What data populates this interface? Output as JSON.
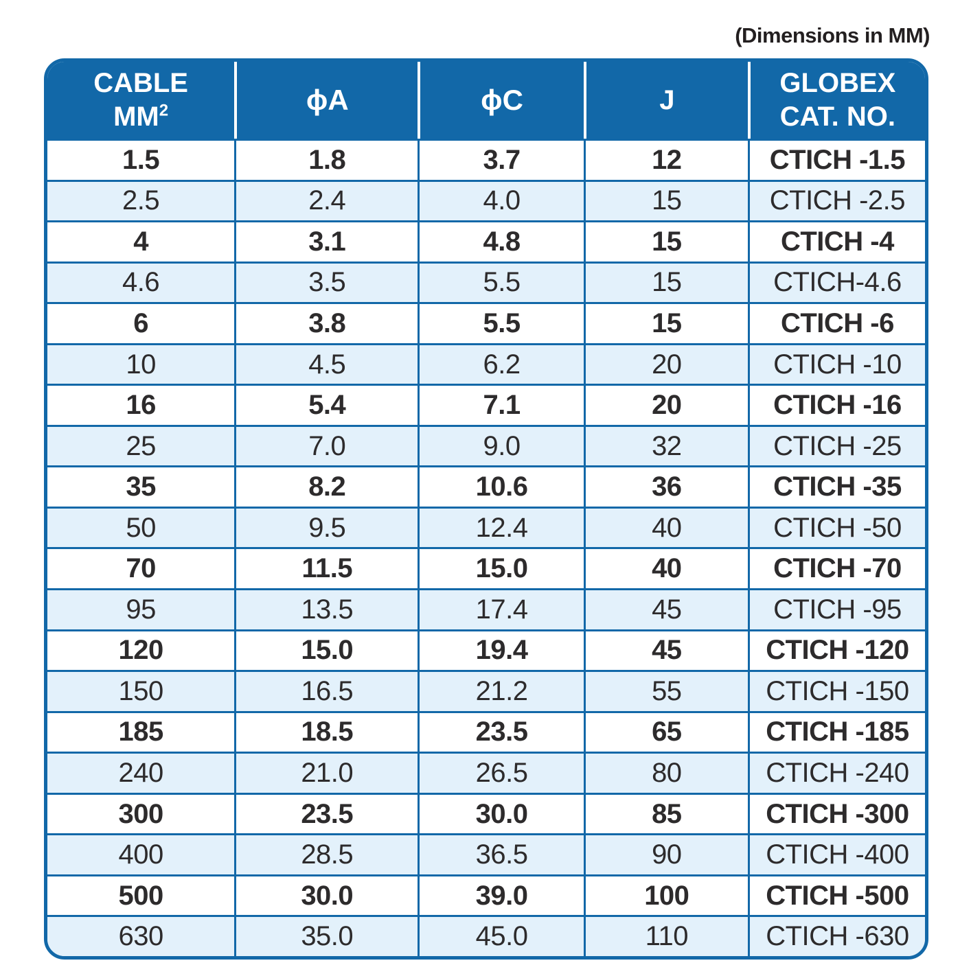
{
  "note": "(Dimensions in MM)",
  "colors": {
    "header_blue": "#1268A8",
    "row_alt_blue": "#E3F1FB",
    "row_white": "#FFFFFF",
    "border_blue": "#1268A8",
    "text_dark": "#2D2B2C",
    "header_text": "#FFFFFF"
  },
  "table": {
    "header": {
      "col1_line1": "CABLE",
      "col1_line2": "MM",
      "col1_sup": "2",
      "col2": "ϕA",
      "col3": "ϕC",
      "col4": "J",
      "col5_line1": "GLOBEX",
      "col5_line2": "CAT. NO."
    },
    "rows": [
      [
        "1.5",
        "1.8",
        "3.7",
        "12",
        "CTICH -1.5"
      ],
      [
        "2.5",
        "2.4",
        "4.0",
        "15",
        "CTICH -2.5"
      ],
      [
        "4",
        "3.1",
        "4.8",
        "15",
        "CTICH -4"
      ],
      [
        "4.6",
        "3.5",
        "5.5",
        "15",
        "CTICH-4.6"
      ],
      [
        "6",
        "3.8",
        "5.5",
        "15",
        "CTICH -6"
      ],
      [
        "10",
        "4.5",
        "6.2",
        "20",
        "CTICH -10"
      ],
      [
        "16",
        "5.4",
        "7.1",
        "20",
        "CTICH -16"
      ],
      [
        "25",
        "7.0",
        "9.0",
        "32",
        "CTICH -25"
      ],
      [
        "35",
        "8.2",
        "10.6",
        "36",
        "CTICH -35"
      ],
      [
        "50",
        "9.5",
        "12.4",
        "40",
        "CTICH -50"
      ],
      [
        "70",
        "11.5",
        "15.0",
        "40",
        "CTICH -70"
      ],
      [
        "95",
        "13.5",
        "17.4",
        "45",
        "CTICH -95"
      ],
      [
        "120",
        "15.0",
        "19.4",
        "45",
        "CTICH -120"
      ],
      [
        "150",
        "16.5",
        "21.2",
        "55",
        "CTICH -150"
      ],
      [
        "185",
        "18.5",
        "23.5",
        "65",
        "CTICH -185"
      ],
      [
        "240",
        "21.0",
        "26.5",
        "80",
        "CTICH -240"
      ],
      [
        "300",
        "23.5",
        "30.0",
        "85",
        "CTICH -300"
      ],
      [
        "400",
        "28.5",
        "36.5",
        "90",
        "CTICH -400"
      ],
      [
        "500",
        "30.0",
        "39.0",
        "100",
        "CTICH -500"
      ],
      [
        "630",
        "35.0",
        "45.0",
        "110",
        "CTICH -630"
      ]
    ]
  }
}
